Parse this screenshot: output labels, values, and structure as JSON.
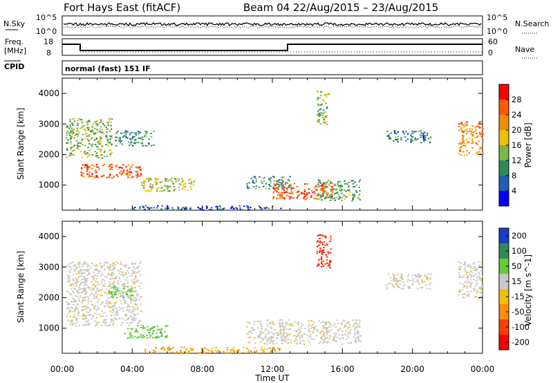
{
  "header": {
    "station": "Fort Hays East (fitACF)",
    "beam_and_dates": "Beam 04 22/Aug/2015 – 23/Aug/2015"
  },
  "noise_panel": {
    "left_label": "N.Sky",
    "right_label": "N.Search",
    "left_ticks": [
      "10^5",
      "10^0"
    ],
    "right_ticks": [
      "10^5",
      "10^0"
    ]
  },
  "freq_panel": {
    "left_label_line1": "Freq.",
    "left_label_line2": "[MHz]",
    "right_label": "Nave",
    "left_ticks": [
      "18",
      "8"
    ],
    "right_ticks": [
      "60",
      "0"
    ]
  },
  "cpid": {
    "label": "CPID",
    "value": "normal (fast) 151 IF"
  },
  "colors": {
    "power_scale": [
      "#0000ff",
      "#1f5fb4",
      "#2e8b57",
      "#7ab648",
      "#f0c000",
      "#f08c00",
      "#ff5a00",
      "#ff0000"
    ],
    "velocity_scale": [
      "#1a3cc8",
      "#2e8b57",
      "#66cc33",
      "#c8c8c8",
      "#f0c000",
      "#ff8c00",
      "#ff4000",
      "#ff0000"
    ]
  },
  "chart_data": [
    {
      "type": "heatmap",
      "title": "",
      "xlabel": "Time UT",
      "ylabel": "Slant Range [km]",
      "xlim": [
        "00:00",
        "24:00"
      ],
      "ylim": [
        180,
        4500
      ],
      "x_tick_labels": [
        "00:00",
        "04:00",
        "08:00",
        "12:00",
        "16:00",
        "20:00",
        "00:00"
      ],
      "y_tick_labels": [
        "1000",
        "2000",
        "3000",
        "4000"
      ],
      "y_ticks": [
        1000,
        2000,
        3000,
        4000
      ],
      "colorbar": {
        "label": "Power [dB]",
        "ticks": [
          "4",
          "8",
          "12",
          "16",
          "20",
          "24",
          "28"
        ],
        "range": [
          0,
          32
        ]
      },
      "echo_regions": [
        {
          "t_start": 0.2,
          "t_end": 2.8,
          "r_min": 1900,
          "r_max": 3200,
          "level": 14
        },
        {
          "t_start": 1.0,
          "t_end": 4.5,
          "r_min": 1250,
          "r_max": 1700,
          "level": 26
        },
        {
          "t_start": 3.0,
          "t_end": 5.2,
          "r_min": 2300,
          "r_max": 2800,
          "level": 10
        },
        {
          "t_start": 4.5,
          "t_end": 7.5,
          "r_min": 800,
          "r_max": 1250,
          "level": 16
        },
        {
          "t_start": 10.5,
          "t_end": 13.0,
          "r_min": 900,
          "r_max": 1300,
          "level": 10
        },
        {
          "t_start": 12.0,
          "t_end": 15.5,
          "r_min": 550,
          "r_max": 1100,
          "level": 26
        },
        {
          "t_start": 14.5,
          "t_end": 17.0,
          "r_min": 500,
          "r_max": 1200,
          "level": 12
        },
        {
          "t_start": 14.5,
          "t_end": 15.2,
          "r_min": 3000,
          "r_max": 4100,
          "level": 14
        },
        {
          "t_start": 18.5,
          "t_end": 21.0,
          "r_min": 2400,
          "r_max": 2800,
          "level": 8
        },
        {
          "t_start": 22.6,
          "t_end": 24.0,
          "r_min": 2000,
          "r_max": 3100,
          "level": 22
        },
        {
          "t_start": 4.0,
          "t_end": 12.5,
          "r_min": 200,
          "r_max": 350,
          "level": 6
        }
      ]
    },
    {
      "type": "heatmap",
      "title": "",
      "xlabel": "Time UT",
      "ylabel": "Slant Range [km]",
      "xlim": [
        "00:00",
        "24:00"
      ],
      "ylim": [
        180,
        4500
      ],
      "x_tick_labels": [
        "00:00",
        "04:00",
        "08:00",
        "12:00",
        "16:00",
        "20:00",
        "00:00"
      ],
      "y_tick_labels": [
        "1000",
        "2000",
        "3000",
        "4000"
      ],
      "y_ticks": [
        1000,
        2000,
        3000,
        4000
      ],
      "colorbar": {
        "label": "Velocity [m s^-1]",
        "ticks": [
          "200",
          "100",
          "50",
          "15",
          "-15",
          "-50",
          "-100",
          "-200"
        ],
        "range": [
          -250,
          250
        ]
      },
      "echo_regions": [
        {
          "t_start": 0.2,
          "t_end": 4.5,
          "r_min": 1100,
          "r_max": 3200,
          "velocity": 0
        },
        {
          "t_start": 2.5,
          "t_end": 4.0,
          "r_min": 2000,
          "r_max": 2400,
          "velocity": 60
        },
        {
          "t_start": 3.5,
          "t_end": 6.0,
          "r_min": 700,
          "r_max": 1100,
          "velocity": 60
        },
        {
          "t_start": 4.5,
          "t_end": 12.5,
          "r_min": 200,
          "r_max": 400,
          "velocity": -40
        },
        {
          "t_start": 10.5,
          "t_end": 17.0,
          "r_min": 500,
          "r_max": 1300,
          "velocity": 0
        },
        {
          "t_start": 14.5,
          "t_end": 15.3,
          "r_min": 3000,
          "r_max": 4100,
          "velocity": -150
        },
        {
          "t_start": 18.5,
          "t_end": 21.0,
          "r_min": 2300,
          "r_max": 2800,
          "velocity": 0
        },
        {
          "t_start": 22.6,
          "t_end": 24.0,
          "r_min": 2000,
          "r_max": 3200,
          "velocity": 0
        }
      ]
    }
  ]
}
